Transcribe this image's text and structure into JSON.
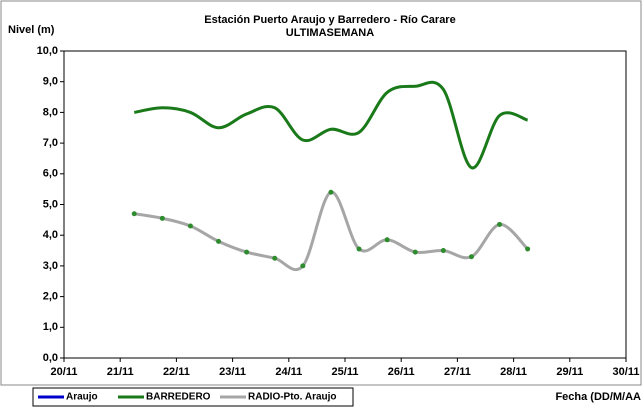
{
  "chart_data": {
    "type": "line",
    "title": "Estación Puerto Araujo y Barredero - Río Carare",
    "subtitle": "ULTIMASEMANA",
    "y_label": "Nivel (m)",
    "x_label": "Fecha (DD/M/AA",
    "x": [
      21.25,
      21.75,
      22.25,
      22.75,
      23.25,
      23.75,
      24.25,
      24.75,
      25.25,
      25.75,
      26.25,
      26.75,
      27.25,
      27.75,
      28.25
    ],
    "series": [
      {
        "name": "Araujo",
        "color": "#0000cc",
        "values": [
          null,
          null,
          null,
          null,
          null,
          null,
          null,
          null,
          null,
          null,
          null,
          null,
          null,
          null,
          null
        ]
      },
      {
        "name": "BARREDERO",
        "color": "#1a7a1a",
        "values": [
          8.0,
          8.15,
          8.0,
          7.5,
          7.95,
          8.15,
          7.1,
          7.45,
          7.35,
          8.65,
          8.85,
          8.75,
          6.2,
          7.9,
          7.75
        ]
      },
      {
        "name": "RADIO-Pto. Araujo",
        "color": "#a6a6a6",
        "marker_color": "#2e8b2e",
        "values": [
          4.7,
          4.55,
          4.3,
          3.8,
          3.45,
          3.25,
          3.0,
          5.4,
          3.55,
          3.85,
          3.45,
          3.5,
          3.3,
          4.35,
          3.55
        ]
      }
    ],
    "xlim": [
      20,
      30
    ],
    "xticks": [
      {
        "value": 20,
        "label": "20/11"
      },
      {
        "value": 21,
        "label": "21/11"
      },
      {
        "value": 22,
        "label": "22/11"
      },
      {
        "value": 23,
        "label": "23/11"
      },
      {
        "value": 24,
        "label": "24/11"
      },
      {
        "value": 25,
        "label": "25/11"
      },
      {
        "value": 26,
        "label": "26/11"
      },
      {
        "value": 27,
        "label": "27/11"
      },
      {
        "value": 28,
        "label": "28/11"
      },
      {
        "value": 29,
        "label": "29/11"
      },
      {
        "value": 30,
        "label": "30/11"
      }
    ],
    "ylim": [
      0,
      10
    ],
    "yticks": [
      {
        "value": 0,
        "label": "0,0"
      },
      {
        "value": 1,
        "label": "1,0"
      },
      {
        "value": 2,
        "label": "2,0"
      },
      {
        "value": 3,
        "label": "3,0"
      },
      {
        "value": 4,
        "label": "4,0"
      },
      {
        "value": 5,
        "label": "5,0"
      },
      {
        "value": 6,
        "label": "6,0"
      },
      {
        "value": 7,
        "label": "7,0"
      },
      {
        "value": 8,
        "label": "8,0"
      },
      {
        "value": 9,
        "label": "9,0"
      },
      {
        "value": 10,
        "label": "10,0"
      }
    ],
    "grid": false,
    "smooth": true,
    "legend": "bottom-left"
  }
}
